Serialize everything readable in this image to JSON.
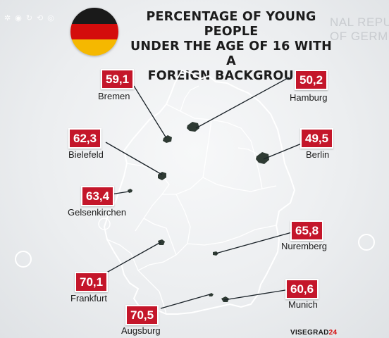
{
  "title_lines": [
    "PERCENTAGE OF YOUNG PEOPLE",
    "UNDER THE AGE OF 16 WITH A",
    "FOREIGN BACKGROUND"
  ],
  "background_text": {
    "line1": "NAL REPU",
    "line2": "OF GERM"
  },
  "source": {
    "prefix": "VISEGRAD",
    "suffix": "24"
  },
  "flag_colors": {
    "black": "#1a1a1a",
    "red": "#d40c0c",
    "gold": "#f5b800"
  },
  "accent_color": "#c4162a",
  "cities": [
    {
      "name": "Bremen",
      "value": "59,1"
    },
    {
      "name": "Hamburg",
      "value": "50,2"
    },
    {
      "name": "Bielefeld",
      "value": "62,3"
    },
    {
      "name": "Berlin",
      "value": "49,5"
    },
    {
      "name": "Gelsenkirchen",
      "value": "63,4"
    },
    {
      "name": "Nuremberg",
      "value": "65,8"
    },
    {
      "name": "Frankfurt",
      "value": "70,1"
    },
    {
      "name": "Munich",
      "value": "60,6"
    },
    {
      "name": "Augsburg",
      "value": "70,5"
    }
  ]
}
